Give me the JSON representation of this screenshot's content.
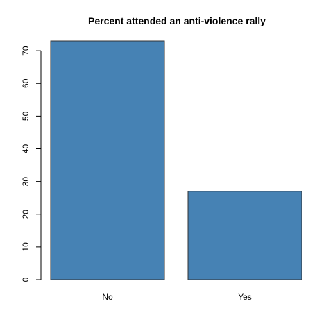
{
  "chart_data": {
    "type": "bar",
    "title": "Percent attended an anti-violence rally",
    "xlabel": "",
    "ylabel": "",
    "categories": [
      "No",
      "Yes"
    ],
    "values": [
      73,
      27
    ],
    "ylim": [
      0,
      73
    ],
    "yticks": [
      0,
      10,
      20,
      30,
      40,
      50,
      60,
      70
    ],
    "bar_color": "#4682b4",
    "bar_border_color": "#333333",
    "grid": false,
    "legend": "none"
  }
}
